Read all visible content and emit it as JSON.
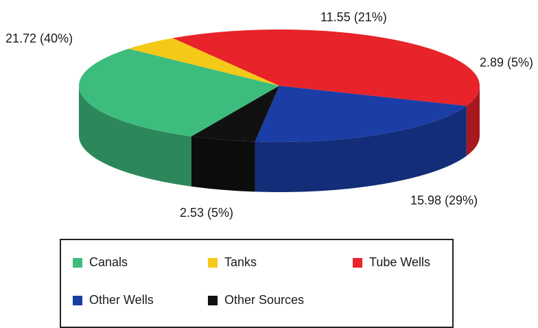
{
  "chart_data": {
    "type": "pie",
    "style": "3d",
    "title": "",
    "slices": [
      {
        "name": "Canals",
        "value": 15.98,
        "percent": 29,
        "label": "15.98 (29%)",
        "color": "#3dbd7d"
      },
      {
        "name": "Tanks",
        "value": 2.53,
        "percent": 5,
        "label": "2.53 (5%)",
        "color": "#f5c917"
      },
      {
        "name": "Tube Wells",
        "value": 21.72,
        "percent": 40,
        "label": "21.72 (40%)",
        "color": "#e8232a"
      },
      {
        "name": "Other Wells",
        "value": 11.55,
        "percent": 21,
        "label": "11.55 (21%)",
        "color": "#1a3ea6"
      },
      {
        "name": "Other Sources",
        "value": 2.89,
        "percent": 5,
        "label": "2.89 (5%)",
        "color": "#111111"
      }
    ],
    "legend": {
      "placement": "bottom",
      "items": [
        "Canals",
        "Tanks",
        "Tube Wells",
        "Other Wells",
        "Other Sources"
      ]
    }
  }
}
